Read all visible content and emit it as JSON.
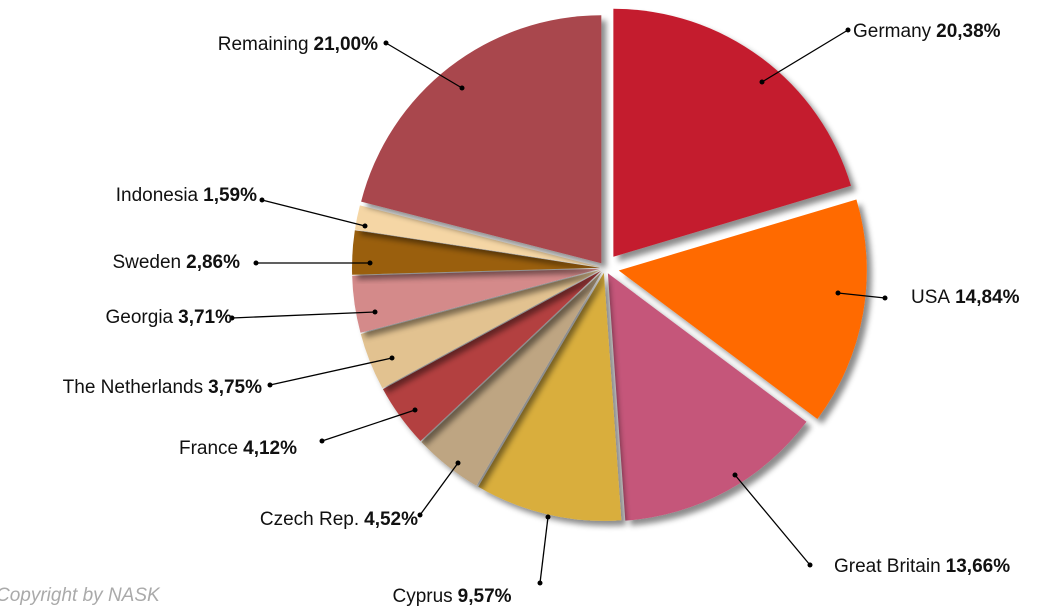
{
  "chart_data": {
    "type": "pie",
    "categories": [
      "Germany",
      "USA",
      "Great Britain",
      "Cyprus",
      "Czech Rep.",
      "France",
      "The Netherlands",
      "Georgia",
      "Sweden",
      "Indonesia",
      "Remaining"
    ],
    "values": [
      20.38,
      14.84,
      13.66,
      9.57,
      4.52,
      4.12,
      3.75,
      3.71,
      2.86,
      1.59,
      21.0
    ],
    "value_labels": [
      "20,38%",
      "14,84%",
      "13,66%",
      "9,57%",
      "4,52%",
      "4,12%",
      "3,75%",
      "3,71%",
      "2,86%",
      "1,59%",
      "21,00%"
    ],
    "colors": [
      "#c41b2e",
      "#ff6a00",
      "#c5567a",
      "#d9ae3e",
      "#bea582",
      "#b34040",
      "#e2c290",
      "#d48a8a",
      "#9a5e10",
      "#f5d6a5",
      "#a9474d"
    ],
    "source": "Copyright by NASK"
  }
}
